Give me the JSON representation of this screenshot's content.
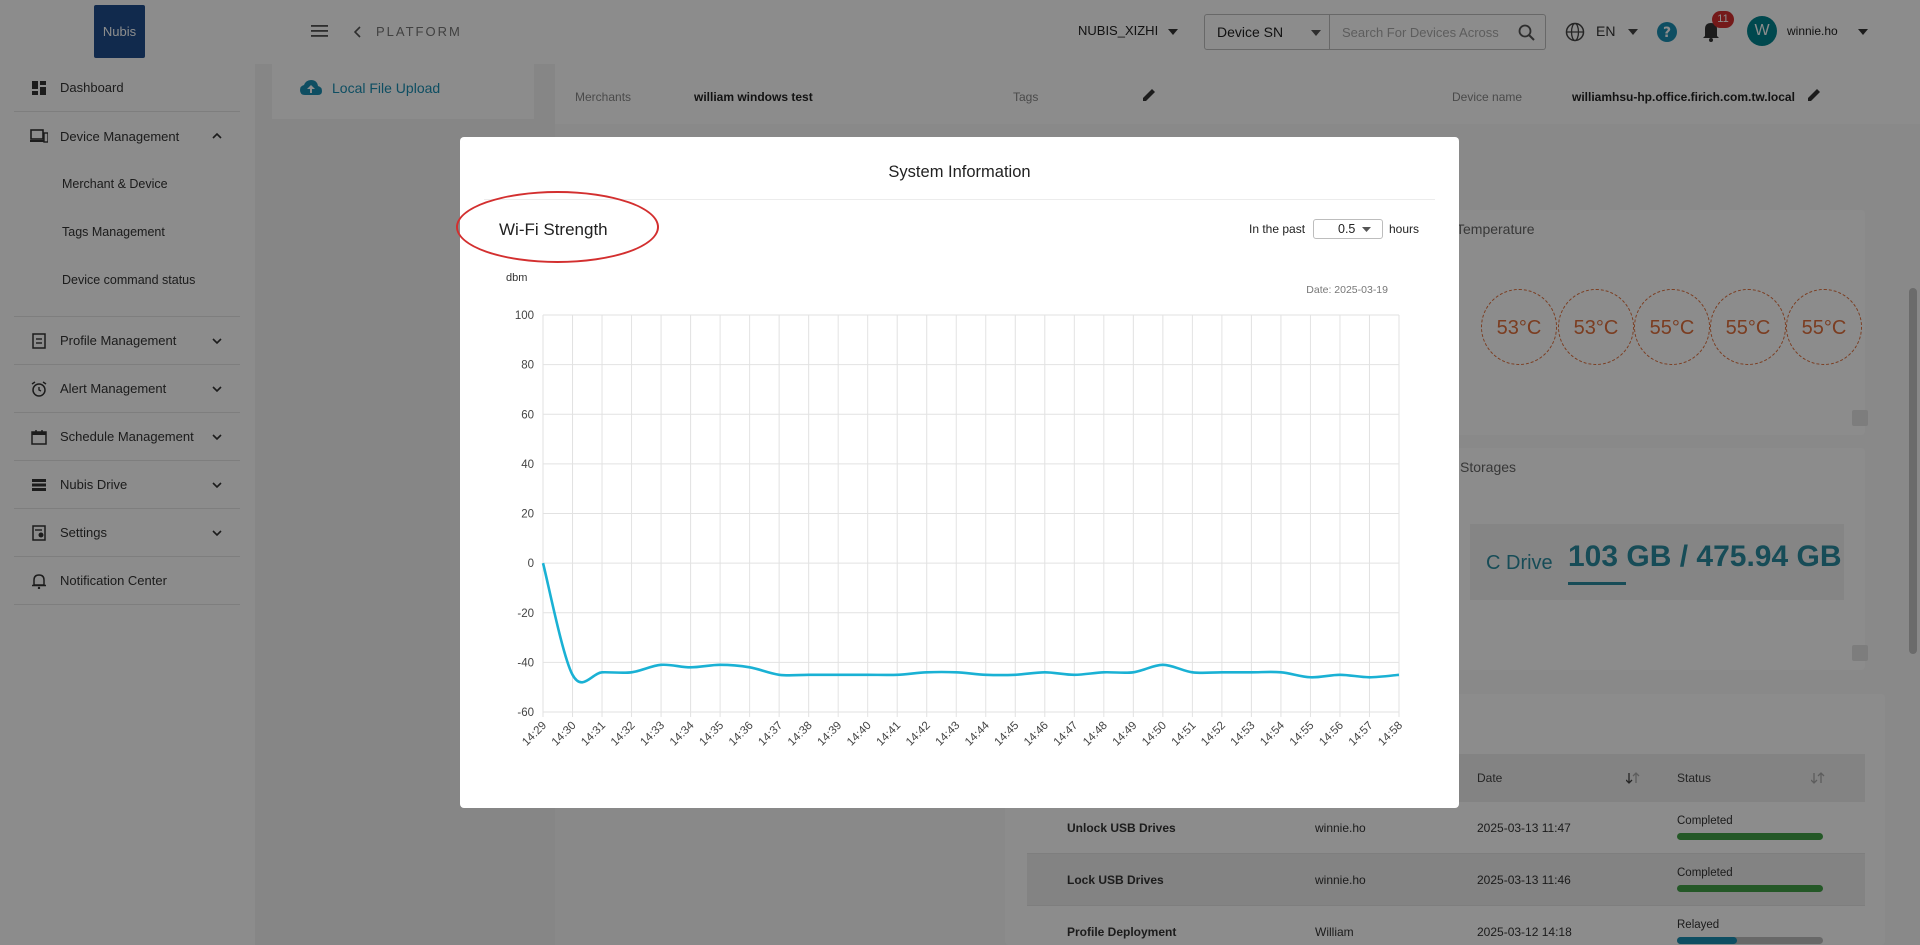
{
  "app": {
    "logo_text": "Nubis",
    "breadcrumb": "PLATFORM",
    "tenant": "NUBIS_XIZHI",
    "search_type": "Device SN",
    "search_placeholder": "Search For Devices Across",
    "language": "EN",
    "notification_count": "11",
    "avatar_initial": "W",
    "username": "winnie.ho"
  },
  "sidebar": {
    "items": [
      {
        "label": "Dashboard",
        "icon": "dashboard-icon"
      },
      {
        "label": "Device Management",
        "icon": "devices-icon",
        "expanded": true,
        "children": [
          "Merchant & Device",
          "Tags Management",
          "Device command status"
        ]
      },
      {
        "label": "Profile Management",
        "icon": "profile-icon"
      },
      {
        "label": "Alert Management",
        "icon": "alarm-icon"
      },
      {
        "label": "Schedule Management",
        "icon": "calendar-icon"
      },
      {
        "label": "Nubis Drive",
        "icon": "storage-icon"
      },
      {
        "label": "Settings",
        "icon": "settings-icon"
      },
      {
        "label": "Notification Center",
        "icon": "notification-icon"
      }
    ]
  },
  "background": {
    "upload_label": "Local File Upload",
    "merchants_label": "Merchants",
    "merchants_value": "william windows test",
    "tags_label": "Tags",
    "device_name_label": "Device name",
    "device_name_value": "williamhsu-hp.office.firich.com.tw.local",
    "temperature_title": "Temperature",
    "temperatures": [
      "53°C",
      "53°C",
      "55°C",
      "55°C",
      "55°C"
    ],
    "storages_title": "Storages",
    "drive_label": "C Drive",
    "drive_value": "103 GB / 475.94 GB",
    "table": {
      "headers": [
        "Date",
        "Status"
      ],
      "rows": [
        {
          "command": "Unlock USB Drives",
          "user": "winnie.ho",
          "date": "2025-03-13 11:47",
          "status": "Completed"
        },
        {
          "command": "Lock USB Drives",
          "user": "winnie.ho",
          "date": "2025-03-13 11:46",
          "status": "Completed"
        },
        {
          "command": "Profile Deployment",
          "user": "William",
          "date": "2025-03-12 14:18",
          "status": "Relayed"
        }
      ]
    }
  },
  "modal": {
    "title": "System Information",
    "chart_heading": "Wi-Fi Strength",
    "past_label": "In the past",
    "past_value": "0.5",
    "hours_label": "hours"
  },
  "chart_data": {
    "type": "line",
    "title": "",
    "ylabel": "dbm",
    "annotation": "Date: 2025-03-19",
    "ylim": [
      -60,
      100
    ],
    "yticks": [
      100,
      80,
      60,
      40,
      20,
      0,
      -20,
      -40,
      -60
    ],
    "grid": true,
    "x": [
      "14:29",
      "14:30",
      "14:31",
      "14:32",
      "14:33",
      "14:34",
      "14:35",
      "14:36",
      "14:37",
      "14:38",
      "14:39",
      "14:40",
      "14:41",
      "14:42",
      "14:43",
      "14:44",
      "14:45",
      "14:46",
      "14:47",
      "14:48",
      "14:49",
      "14:50",
      "14:51",
      "14:52",
      "14:53",
      "14:54",
      "14:55",
      "14:56",
      "14:57",
      "14:58"
    ],
    "series": [
      {
        "color": "#1ab1d4",
        "values": [
          0,
          -45,
          -44,
          -44,
          -41,
          -42,
          -41,
          -42,
          -45,
          -45,
          -45,
          -45,
          -45,
          -44,
          -44,
          -45,
          -45,
          -44,
          -45,
          -44,
          -44,
          -41,
          -44,
          -44,
          -44,
          -44,
          -46,
          -45,
          -46,
          -45
        ]
      }
    ]
  }
}
